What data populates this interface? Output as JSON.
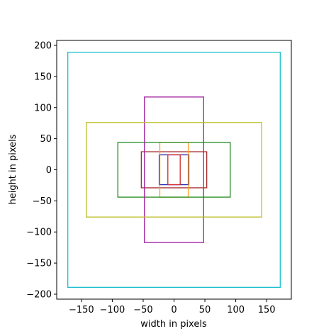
{
  "chart_data": {
    "type": "rectangles",
    "title": "",
    "xlabel": "width in pixels",
    "ylabel": "height in pixels",
    "xlim": [
      -190,
      190
    ],
    "ylim": [
      -208,
      208
    ],
    "xticks": [
      -150,
      -100,
      -50,
      0,
      50,
      100,
      150
    ],
    "yticks": [
      -200,
      -150,
      -100,
      -50,
      0,
      50,
      100,
      150,
      200
    ],
    "grid": false,
    "rectangles": [
      {
        "width": 48,
        "height": 48,
        "color": "#1f1fb4"
      },
      {
        "width": 20,
        "height": 48,
        "color": "#d62728"
      },
      {
        "width": 106,
        "height": 58,
        "color": "#a52a2a"
      },
      {
        "width": 46,
        "height": 88,
        "color": "#ff9f1a"
      },
      {
        "width": 182,
        "height": 88,
        "color": "#228b22"
      },
      {
        "width": 96,
        "height": 234,
        "color": "#a020a0"
      },
      {
        "width": 284,
        "height": 152,
        "color": "#bcbd22"
      },
      {
        "width": 344,
        "height": 378,
        "color": "#17becf"
      }
    ]
  }
}
